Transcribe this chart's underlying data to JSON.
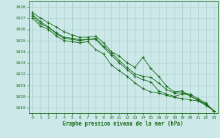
{
  "title": "Graphe pression niveau de la mer (hPa)",
  "background_color": "#cce8e8",
  "grid_color": "#aacccc",
  "line_color": "#1a6e1a",
  "marker_color": "#1a6e1a",
  "xlim": [
    -0.5,
    23.5
  ],
  "ylim": [
    1018.5,
    1028.5
  ],
  "yticks": [
    1019,
    1020,
    1021,
    1022,
    1023,
    1024,
    1025,
    1026,
    1027,
    1028
  ],
  "xticks": [
    0,
    1,
    2,
    3,
    4,
    5,
    6,
    7,
    8,
    9,
    10,
    11,
    12,
    13,
    14,
    15,
    16,
    17,
    18,
    19,
    20,
    21,
    22,
    23
  ],
  "series": [
    [
      1027.5,
      1027.0,
      1026.6,
      1026.2,
      1025.8,
      1025.5,
      1025.3,
      1025.3,
      1025.4,
      1024.8,
      1024.0,
      1023.6,
      1023.0,
      1022.6,
      1023.5,
      1022.5,
      1021.8,
      1020.9,
      1020.4,
      1020.5,
      1020.0,
      1019.7,
      1019.3,
      1018.7
    ],
    [
      1027.3,
      1026.7,
      1026.2,
      1025.7,
      1025.3,
      1025.2,
      1025.1,
      1025.1,
      1025.2,
      1024.5,
      1023.9,
      1023.2,
      1022.6,
      1022.0,
      1021.8,
      1021.7,
      1021.2,
      1020.6,
      1020.3,
      1020.3,
      1020.2,
      1019.8,
      1019.4,
      1018.7
    ],
    [
      1027.2,
      1026.5,
      1026.2,
      1025.6,
      1025.2,
      1025.1,
      1025.0,
      1025.1,
      1025.1,
      1024.4,
      1023.7,
      1023.0,
      1022.4,
      1021.8,
      1021.5,
      1021.3,
      1020.5,
      1020.2,
      1020.0,
      1020.2,
      1020.1,
      1019.6,
      1019.3,
      1018.7
    ],
    [
      1027.0,
      1026.3,
      1026.0,
      1025.4,
      1025.0,
      1024.9,
      1024.8,
      1024.9,
      1024.2,
      1023.8,
      1022.8,
      1022.3,
      1021.8,
      1021.2,
      1020.7,
      1020.4,
      1020.3,
      1020.1,
      1019.9,
      1019.8,
      1019.7,
      1019.6,
      1019.2,
      1018.7
    ]
  ]
}
